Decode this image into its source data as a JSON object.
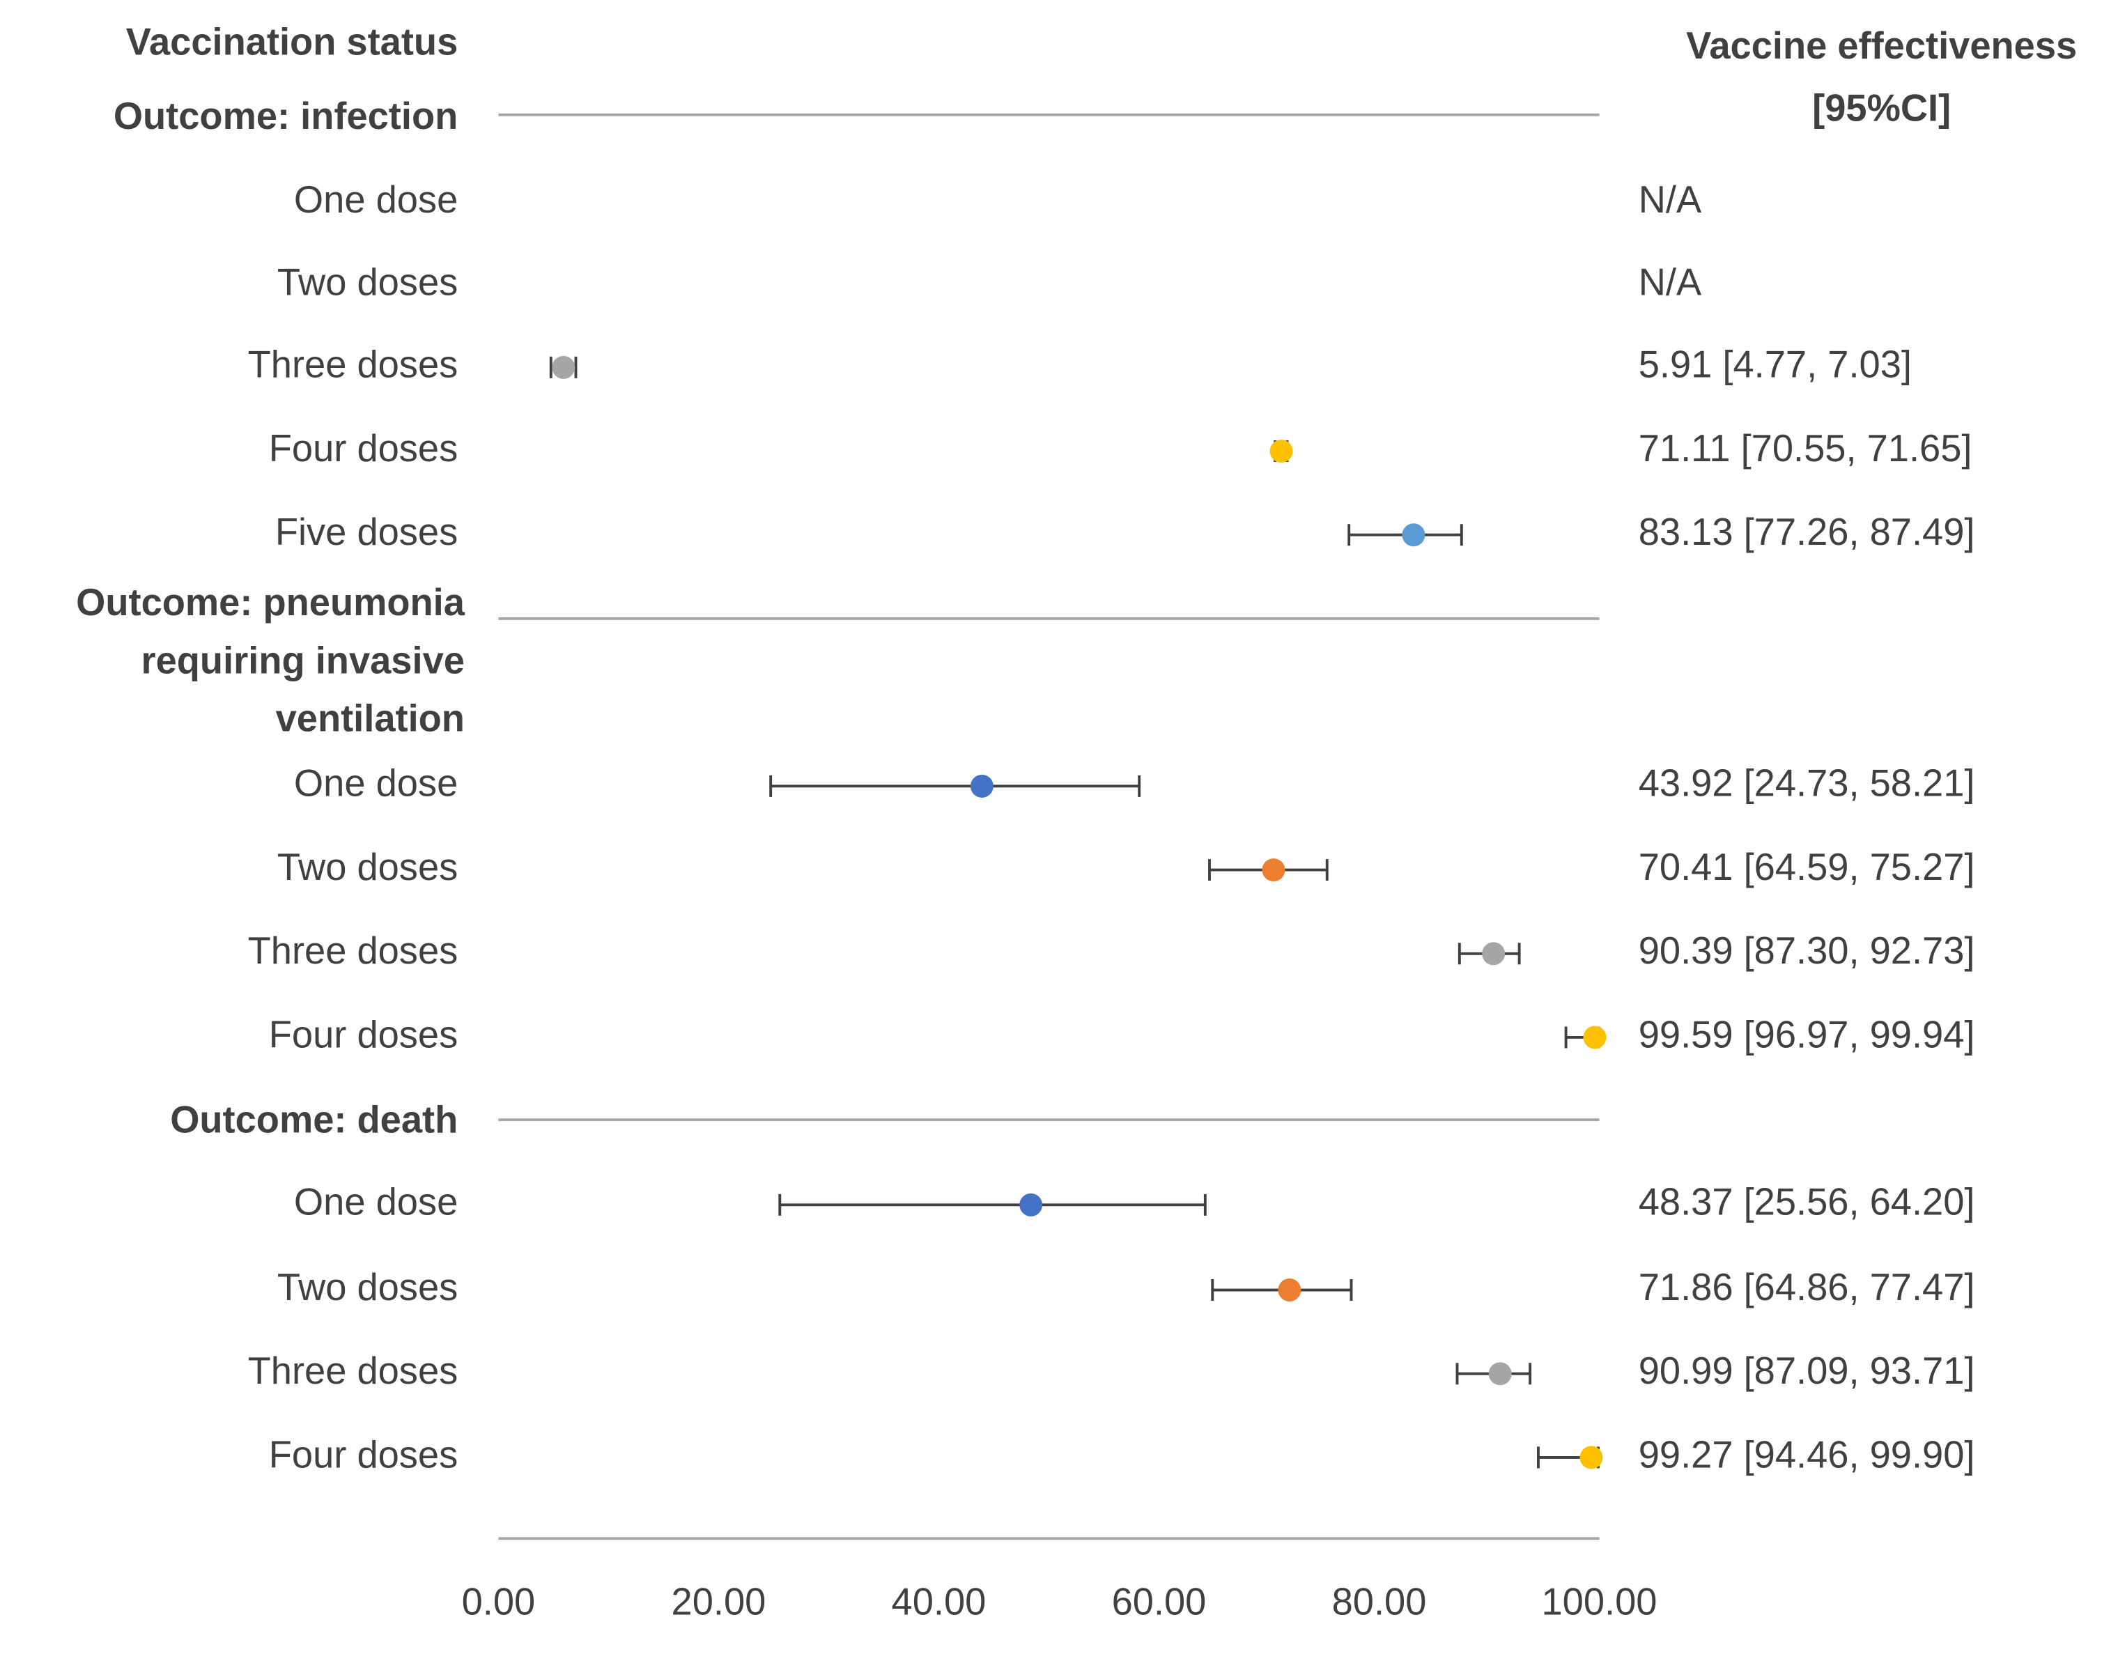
{
  "chart_data": {
    "type": "forest",
    "left_header": "Vaccination status",
    "right_header": [
      "Vaccine effectiveness",
      "[95%CI]"
    ],
    "xlim": [
      0,
      100
    ],
    "xticks": [
      {
        "value": 0,
        "label": "0.00"
      },
      {
        "value": 20,
        "label": "20.00"
      },
      {
        "value": 40,
        "label": "40.00"
      },
      {
        "value": 60,
        "label": "60.00"
      },
      {
        "value": 80,
        "label": "80.00"
      },
      {
        "value": 100,
        "label": "100.00"
      }
    ],
    "groups": [
      {
        "title": [
          "Outcome: infection"
        ],
        "rows": [
          {
            "label": "One dose",
            "value": null,
            "lower": null,
            "upper": null,
            "value_label": "N/A",
            "color": "#4472c4"
          },
          {
            "label": "Two doses",
            "value": null,
            "lower": null,
            "upper": null,
            "value_label": "N/A",
            "color": "#ed7d31"
          },
          {
            "label": "Three doses",
            "value": 5.91,
            "lower": 4.77,
            "upper": 7.03,
            "value_label": "5.91 [4.77, 7.03]",
            "color": "#a5a5a5"
          },
          {
            "label": "Four doses",
            "value": 71.11,
            "lower": 70.55,
            "upper": 71.65,
            "value_label": "71.11 [70.55, 71.65]",
            "color": "#ffc000"
          },
          {
            "label": "Five doses",
            "value": 83.13,
            "lower": 77.26,
            "upper": 87.49,
            "value_label": "83.13 [77.26, 87.49]",
            "color": "#5b9bd5"
          }
        ]
      },
      {
        "title": [
          "Outcome: pneumonia",
          "requiring invasive",
          "ventilation"
        ],
        "rows": [
          {
            "label": "One dose",
            "value": 43.92,
            "lower": 24.73,
            "upper": 58.21,
            "value_label": "43.92 [24.73, 58.21]",
            "color": "#4472c4"
          },
          {
            "label": "Two doses",
            "value": 70.41,
            "lower": 64.59,
            "upper": 75.27,
            "value_label": "70.41 [64.59, 75.27]",
            "color": "#ed7d31"
          },
          {
            "label": "Three doses",
            "value": 90.39,
            "lower": 87.3,
            "upper": 92.73,
            "value_label": "90.39 [87.30, 92.73]",
            "color": "#a5a5a5"
          },
          {
            "label": "Four doses",
            "value": 99.59,
            "lower": 96.97,
            "upper": 99.94,
            "value_label": "99.59 [96.97, 99.94]",
            "color": "#ffc000"
          }
        ]
      },
      {
        "title": [
          "Outcome: death"
        ],
        "rows": [
          {
            "label": "One dose",
            "value": 48.37,
            "lower": 25.56,
            "upper": 64.2,
            "value_label": "48.37 [25.56, 64.20]",
            "color": "#4472c4"
          },
          {
            "label": "Two doses",
            "value": 71.86,
            "lower": 64.86,
            "upper": 77.47,
            "value_label": "71.86 [64.86, 77.47]",
            "color": "#ed7d31"
          },
          {
            "label": "Three doses",
            "value": 90.99,
            "lower": 87.09,
            "upper": 93.71,
            "value_label": "90.99 [87.09, 93.71]",
            "color": "#a5a5a5"
          },
          {
            "label": "Four doses",
            "value": 99.27,
            "lower": 94.46,
            "upper": 99.9,
            "value_label": "99.27 [94.46, 99.90]",
            "color": "#ffc000"
          }
        ]
      }
    ]
  }
}
